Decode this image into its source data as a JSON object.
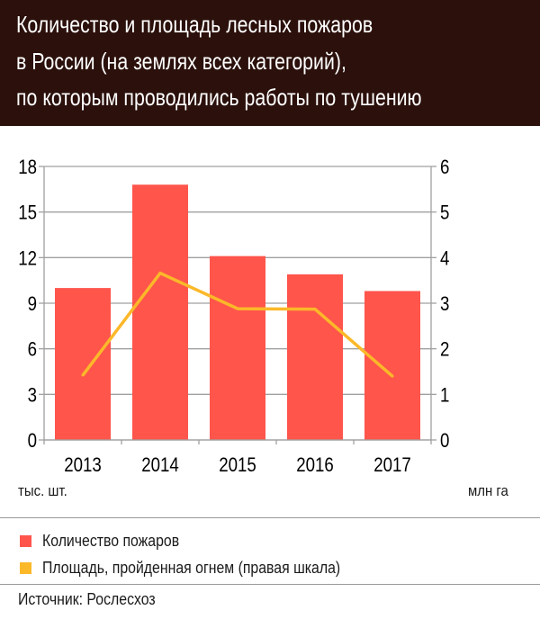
{
  "title_lines": [
    "Количество и площадь лесных пожаров",
    "в России (на землях всех категорий),",
    "по которым проводились работы по тушению"
  ],
  "colors": {
    "bars": "#ff554b",
    "line": "#fbb829",
    "header": "#2b100b"
  },
  "chart_data": {
    "type": "bar+line",
    "title": "Количество и площадь лесных пожаров в России (на землях всех категорий), по которым проводились работы по тушению",
    "categories": [
      "2013",
      "2014",
      "2015",
      "2016",
      "2017"
    ],
    "series": [
      {
        "name": "Количество пожаров",
        "type": "bar",
        "axis": "left",
        "values": [
          10.0,
          16.8,
          12.1,
          10.9,
          9.8
        ]
      },
      {
        "name": "Площадь, пройденная огнем (правая шкала)",
        "type": "line",
        "axis": "right",
        "values": [
          1.42,
          3.66,
          2.88,
          2.87,
          1.4
        ]
      }
    ],
    "ylabel": "тыс. шт.",
    "y2label": "млн га",
    "ylim": [
      0,
      18
    ],
    "y2lim": [
      0,
      6
    ],
    "yticks": [
      "0",
      "3",
      "6",
      "9",
      "12",
      "15",
      "18"
    ],
    "y2ticks": [
      "0",
      "1",
      "2",
      "3",
      "4",
      "5",
      "6"
    ],
    "grid": true,
    "legend_position": "bottom"
  },
  "source": "Источник: Рослесхоз"
}
